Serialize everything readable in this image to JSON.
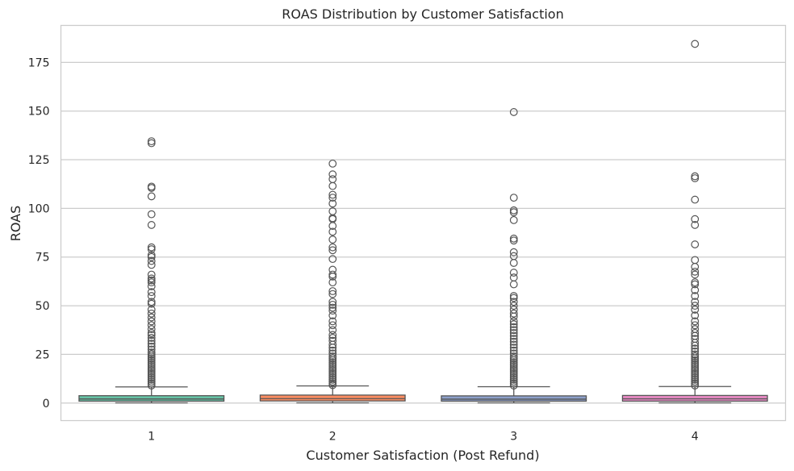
{
  "chart_data": {
    "type": "box",
    "title": "ROAS Distribution by Customer Satisfaction",
    "xlabel": "Customer Satisfaction (Post Refund)",
    "ylabel": "ROAS",
    "categories": [
      "1",
      "2",
      "3",
      "4"
    ],
    "yticks": [
      "0",
      "25",
      "50",
      "75",
      "100",
      "125",
      "150",
      "175"
    ],
    "ylim": [
      -9,
      194
    ],
    "grid": "horizontal",
    "colors": {
      "boxes": [
        "#66c2a5",
        "#fc8d62",
        "#8da0cb",
        "#e78ac3"
      ],
      "edge": "#555555",
      "grid": "#cccccc",
      "spine": "#cccccc"
    },
    "boxes": [
      {
        "category": "1",
        "q1": 1.0,
        "median": 2.1,
        "q3": 3.8,
        "whisker_low": 0.1,
        "whisker_high": 8.3,
        "outliers": [
          134.5,
          133.5,
          111.2,
          110.5,
          106.2,
          97.0,
          91.5,
          80.0,
          79.0,
          76.0,
          75.0,
          73.0,
          71.0,
          66.0,
          64.0,
          63.0,
          62.0,
          60.0,
          57.0,
          55.0,
          52.0,
          51.0,
          48.0,
          46.0,
          44.0,
          42.0,
          40.0,
          38.0,
          36.0,
          35.0,
          33.5,
          32.0,
          30.5,
          29.0,
          27.5,
          26.0,
          25.0,
          24.0,
          23.0,
          22.0,
          21.0,
          20.0,
          19.0,
          18.0,
          17.0,
          16.0,
          15.0,
          14.0,
          13.0,
          12.0,
          11.0,
          10.0,
          9.0
        ]
      },
      {
        "category": "2",
        "q1": 1.1,
        "median": 2.3,
        "q3": 4.1,
        "whisker_low": 0.1,
        "whisker_high": 8.8,
        "outliers": [
          123.0,
          117.5,
          115.0,
          111.5,
          107.0,
          105.5,
          102.5,
          98.5,
          95.0,
          94.5,
          91.0,
          88.0,
          84.0,
          80.0,
          78.5,
          74.0,
          68.5,
          66.0,
          65.0,
          62.0,
          57.5,
          56.0,
          52.0,
          50.5,
          49.0,
          47.5,
          45.0,
          42.0,
          40.0,
          37.5,
          35.0,
          33.5,
          32.0,
          30.0,
          28.5,
          27.0,
          25.5,
          24.0,
          23.0,
          22.0,
          21.0,
          20.0,
          19.0,
          18.0,
          17.0,
          16.0,
          15.0,
          14.0,
          13.0,
          12.0,
          11.0,
          10.0,
          9.2
        ]
      },
      {
        "category": "3",
        "q1": 1.0,
        "median": 2.0,
        "q3": 3.7,
        "whisker_low": 0.1,
        "whisker_high": 8.4,
        "outliers": [
          149.5,
          105.5,
          99.0,
          98.0,
          94.0,
          84.5,
          83.5,
          77.5,
          75.5,
          72.0,
          67.0,
          64.5,
          61.0,
          55.0,
          54.0,
          52.0,
          50.0,
          48.0,
          46.0,
          44.5,
          42.0,
          40.5,
          39.0,
          37.5,
          36.0,
          34.5,
          33.0,
          31.5,
          30.0,
          28.5,
          27.0,
          25.5,
          24.0,
          23.0,
          22.0,
          21.0,
          20.0,
          19.0,
          18.0,
          17.0,
          16.0,
          15.0,
          14.0,
          13.0,
          12.0,
          11.0,
          10.0,
          9.0
        ]
      },
      {
        "category": "4",
        "q1": 1.0,
        "median": 2.2,
        "q3": 3.9,
        "whisker_low": 0.1,
        "whisker_high": 8.5,
        "outliers": [
          184.5,
          116.5,
          115.5,
          104.5,
          94.5,
          91.5,
          81.5,
          73.5,
          70.0,
          67.5,
          66.0,
          62.0,
          61.0,
          58.0,
          55.0,
          52.0,
          50.0,
          48.0,
          45.0,
          42.0,
          40.0,
          38.0,
          36.0,
          34.5,
          33.0,
          31.0,
          29.5,
          28.0,
          26.5,
          25.0,
          24.0,
          23.0,
          22.0,
          21.0,
          20.0,
          19.0,
          18.0,
          17.0,
          16.0,
          15.0,
          14.0,
          13.0,
          12.0,
          11.0,
          10.0,
          9.0
        ]
      }
    ]
  }
}
